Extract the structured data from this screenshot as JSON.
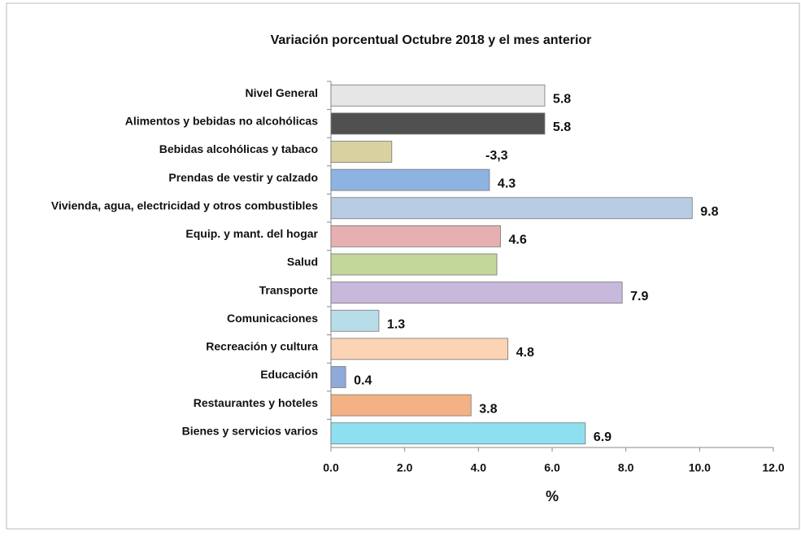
{
  "chart_data": {
    "type": "hbar",
    "title": "Variación porcentual  Octubre 2018 y el mes anterior",
    "x_label": "%",
    "categories": [
      "Nivel General",
      "Alimentos y bebidas no alcohólicas",
      "Bebidas alcohólicas y tabaco",
      "Prendas de vestir y calzado",
      "Vivienda, agua, electricidad y otros combustibles",
      "Equip. y mant. del hogar",
      "Salud",
      "Transporte",
      "Comunicaciones",
      "Recreación y cultura",
      "Educación",
      "Restaurantes y hoteles",
      "Bienes y servicios varios"
    ],
    "values": [
      5.8,
      5.8,
      1.65,
      4.3,
      9.8,
      4.6,
      4.5,
      7.9,
      1.3,
      4.8,
      0.4,
      3.8,
      6.9
    ],
    "value_labels": [
      "5.8",
      "5.8",
      null,
      "4.3",
      "9.8",
      "4.6",
      null,
      "7.9",
      "1.3",
      "4.8",
      "0.4",
      "3.8",
      "6.9"
    ],
    "colors": [
      "#e6e6e6",
      "#505050",
      "#d9d2a0",
      "#8db3e2",
      "#b8cce4",
      "#e6b0b0",
      "#c4d79b",
      "#c8b8dc",
      "#b7dde8",
      "#fbd4b4",
      "#8eaadb",
      "#f4b183",
      "#8ee0f0"
    ],
    "annotations": [
      "-3,3"
    ],
    "xlim": [
      0,
      12
    ],
    "xticks": [
      {
        "value": 0,
        "label": "0.0"
      },
      {
        "value": 2,
        "label": "2.0"
      },
      {
        "value": 4,
        "label": "4.0"
      },
      {
        "value": 6,
        "label": "6.0"
      },
      {
        "value": 8,
        "label": "8.0"
      },
      {
        "value": 10,
        "label": "10.0"
      },
      {
        "value": 12,
        "label": "12.0"
      }
    ]
  }
}
